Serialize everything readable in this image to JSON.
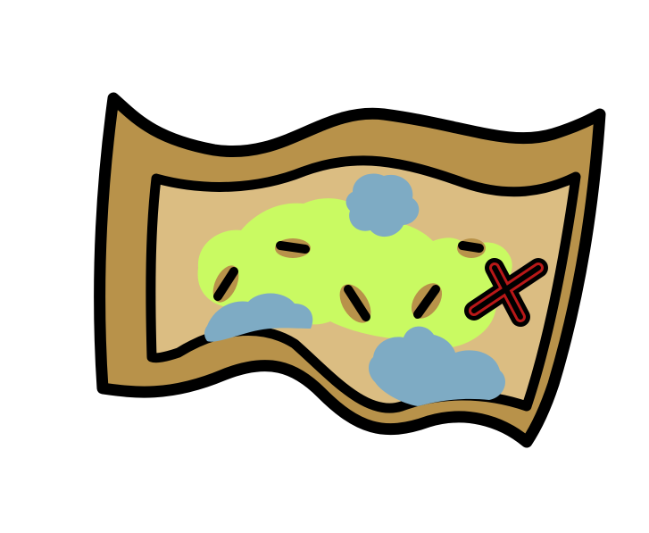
{
  "illustration": {
    "subject": "treasure-map",
    "colors": {
      "background": "#ffffff",
      "frame": "#b8924a",
      "parchment": "#dbbd82",
      "land": "#c9fa62",
      "water": "#7eabc4",
      "marker": "#b8924a",
      "outline": "#000000",
      "x_mark_fill": "#b81818",
      "x_mark_stroke": "#000000"
    },
    "icons": [
      "map-icon",
      "x-mark-icon",
      "path-dash-icon"
    ]
  }
}
